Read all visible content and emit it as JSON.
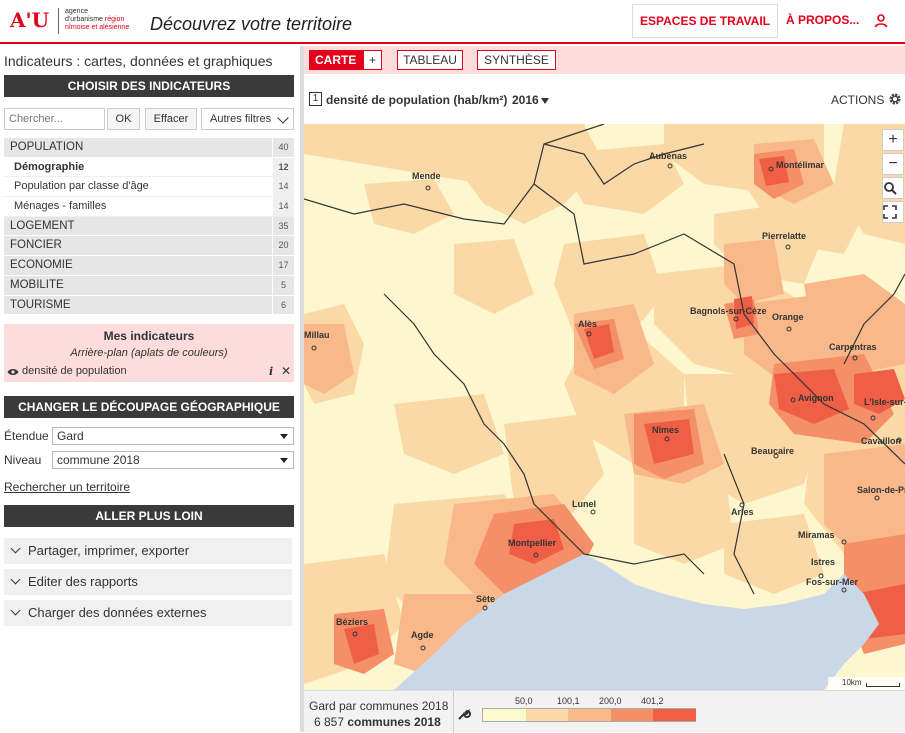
{
  "header": {
    "logo_mark": "A'U",
    "logo_line1": "agence",
    "logo_line2": "d'urbanisme",
    "logo_line2_red": "région",
    "logo_line3": "nîmoise et alésienne",
    "title": "Découvrez votre territoire",
    "espaces_label": "ESPACES DE TRAVAIL",
    "apropos_label": "À PROPOS..."
  },
  "sidebar": {
    "title": "Indicateurs : cartes, données et graphiques",
    "choose_header": "CHOISIR DES INDICATEURS",
    "search_placeholder": "Chercher...",
    "ok_label": "OK",
    "clear_label": "Effacer",
    "filters_label": "Autres filtres",
    "categories": [
      {
        "label": "POPULATION",
        "count": "40",
        "kind": "main"
      },
      {
        "label": "Démographie",
        "count": "12",
        "kind": "sub-bold"
      },
      {
        "label": "Population par classe d'âge",
        "count": "14",
        "kind": "sub"
      },
      {
        "label": "Ménages - familles",
        "count": "14",
        "kind": "sub"
      },
      {
        "label": "LOGEMENT",
        "count": "35",
        "kind": "main"
      },
      {
        "label": "FONCIER",
        "count": "20",
        "kind": "main"
      },
      {
        "label": "ECONOMIE",
        "count": "17",
        "kind": "main"
      },
      {
        "label": "MOBILITE",
        "count": "5",
        "kind": "main"
      },
      {
        "label": "TOURISME",
        "count": "6",
        "kind": "main"
      }
    ],
    "my_indicators": {
      "title": "Mes indicateurs",
      "subtitle": "Arrière-plan (aplats de couleurs)",
      "item": "densité de population"
    },
    "geo_header": "CHANGER LE DÉCOUPAGE GÉOGRAPHIQUE",
    "extent_label": "Étendue",
    "extent_value": "Gard",
    "level_label": "Niveau",
    "level_value": "commune 2018",
    "search_territory": "Rechercher un territoire",
    "further_header": "ALLER PLUS LOIN",
    "accordions": [
      "Partager, imprimer, exporter",
      "Editer des rapports",
      "Charger des données externes"
    ]
  },
  "tabs": {
    "carte": "CARTE",
    "plus": "+",
    "tableau": "TABLEAU",
    "synthese": "SYNTHÈSE"
  },
  "indicator": {
    "number": "1",
    "label": "densité de population (hab/km²)",
    "year": "2016",
    "actions": "ACTIONS"
  },
  "map": {
    "zoom_in": "+",
    "zoom_out": "−",
    "scale": "10km",
    "places": [
      {
        "name": "Aubenas"
      },
      {
        "name": "Montélimar"
      },
      {
        "name": "Mende"
      },
      {
        "name": "Pierrelatte"
      },
      {
        "name": "Bagnols-sur-Cèze"
      },
      {
        "name": "Orange"
      },
      {
        "name": "Alès"
      },
      {
        "name": "Millau"
      },
      {
        "name": "Carpentras"
      },
      {
        "name": "Avignon"
      },
      {
        "name": "L'Isle-sur-la-Sorgue"
      },
      {
        "name": "Nîmes"
      },
      {
        "name": "Cavaillon"
      },
      {
        "name": "Beaucaire"
      },
      {
        "name": "Lunel"
      },
      {
        "name": "Arles"
      },
      {
        "name": "Salon-de-Provence"
      },
      {
        "name": "Montpellier"
      },
      {
        "name": "Miramas"
      },
      {
        "name": "Istres"
      },
      {
        "name": "Fos-sur-Mer"
      },
      {
        "name": "Sète"
      },
      {
        "name": "Béziers"
      },
      {
        "name": "Agde"
      }
    ],
    "colors": {
      "land_low": "#fdf7cf",
      "sea": "#c9d7e6"
    }
  },
  "legend": {
    "line1": "Gard par communes 2018",
    "count": "6 857",
    "unit": "communes 2018",
    "breaks": [
      "50,0",
      "100,1",
      "200,0",
      "401,2"
    ],
    "colors": [
      "#fefacf",
      "#fbd9a6",
      "#f8b88a",
      "#f48f67",
      "#ee5f45"
    ]
  }
}
